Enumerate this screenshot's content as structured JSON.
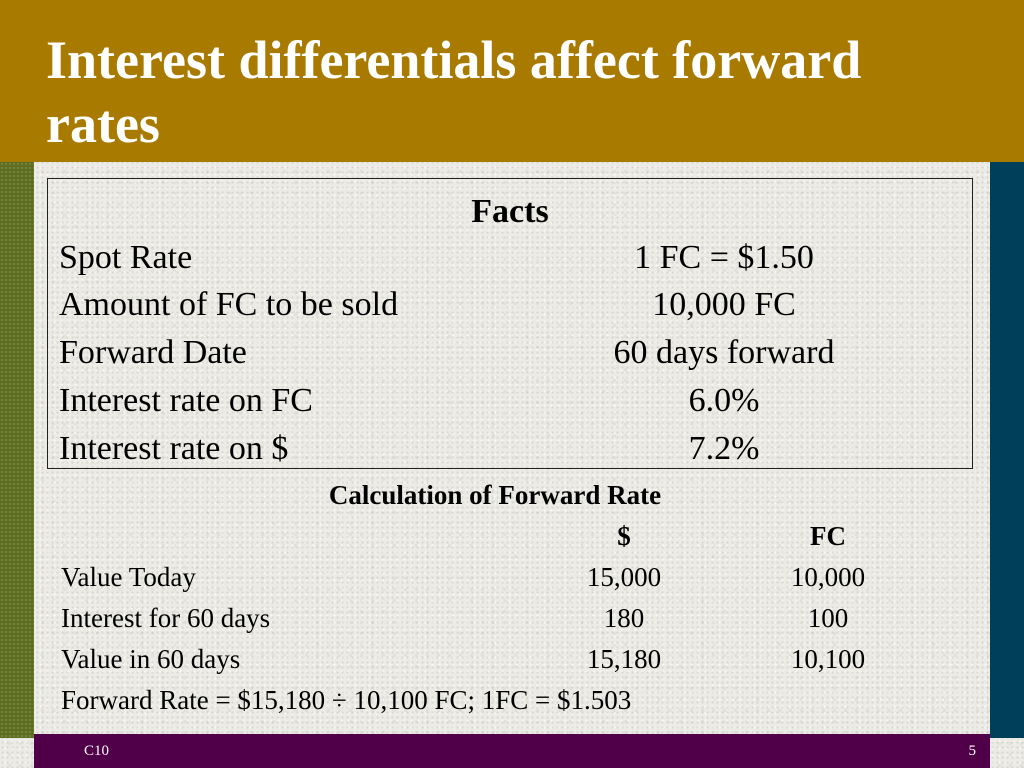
{
  "title": "Interest differentials affect forward rates",
  "facts": {
    "heading": "Facts",
    "rows": [
      {
        "label": "Spot Rate",
        "value": "1 FC = $1.50"
      },
      {
        "label": "Amount of FC to be sold",
        "value": "10,000 FC"
      },
      {
        "label": "Forward Date",
        "value": "60 days forward"
      },
      {
        "label": "Interest rate on FC",
        "value": "6.0%"
      },
      {
        "label": "Interest rate on $",
        "value": "7.2%"
      }
    ]
  },
  "calculation": {
    "heading": "Calculation of Forward Rate",
    "col_dollar": "$",
    "col_fc": "FC",
    "rows": [
      {
        "label": "Value Today",
        "dollar": "15,000",
        "fc": "10,000"
      },
      {
        "label": "Interest for 60 days",
        "dollar": "180",
        "fc": "100"
      },
      {
        "label": "Value in 60 days",
        "dollar": "15,180",
        "fc": "10,100"
      }
    ],
    "formula": "Forward Rate = $15,180 ÷ 10,100 FC; 1FC = $1.503"
  },
  "footer": {
    "left": "C10",
    "right": "5"
  },
  "colors": {
    "title_bar": "#a87b00",
    "left_strip": "#5c6d1e",
    "right_strip": "#003f5a",
    "footer_bar": "#4f0048"
  }
}
